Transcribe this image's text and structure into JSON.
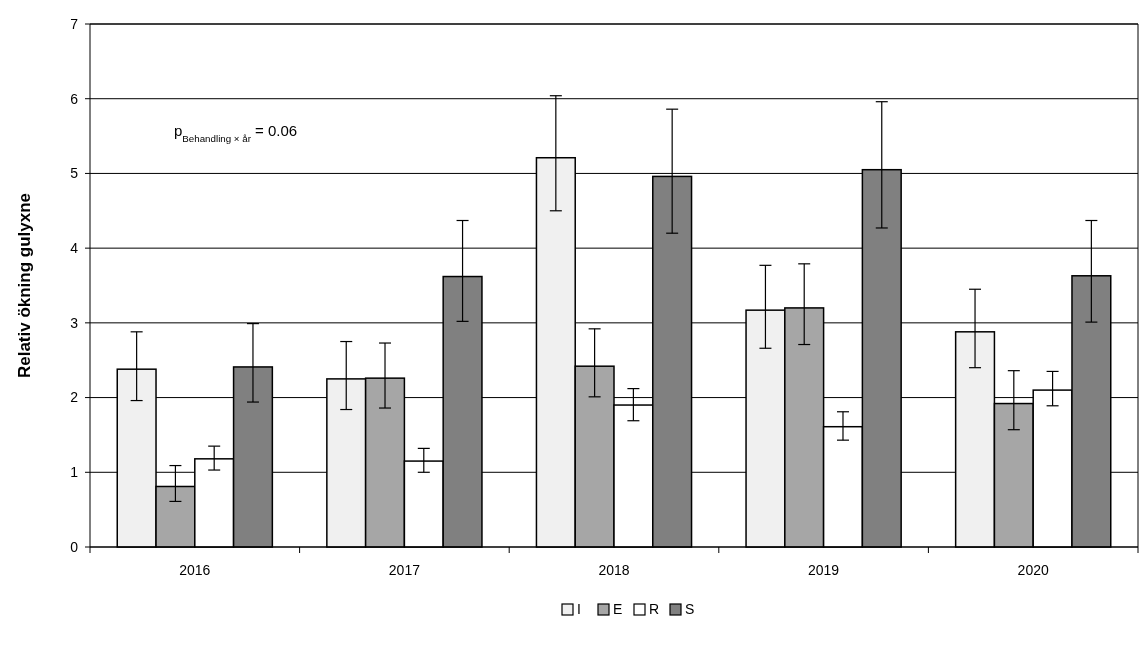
{
  "chart_data": {
    "type": "bar",
    "ylabel": "Relativ ökning gulyxne",
    "categories": [
      "2016",
      "2017",
      "2018",
      "2019",
      "2020"
    ],
    "series": [
      {
        "name": "I",
        "color": "#f0f0f0",
        "values": [
          2.38,
          2.25,
          5.21,
          3.17,
          2.88
        ],
        "errors": [
          [
            1.96,
            2.88
          ],
          [
            1.84,
            2.75
          ],
          [
            4.5,
            6.04
          ],
          [
            2.66,
            3.77
          ],
          [
            2.4,
            3.45
          ]
        ]
      },
      {
        "name": "E",
        "color": "#a6a6a6",
        "values": [
          0.81,
          2.26,
          2.42,
          3.2,
          1.92
        ],
        "errors": [
          [
            0.61,
            1.09
          ],
          [
            1.86,
            2.73
          ],
          [
            2.01,
            2.92
          ],
          [
            2.71,
            3.79
          ],
          [
            1.57,
            2.36
          ]
        ]
      },
      {
        "name": "R",
        "color": "#ffffff",
        "values": [
          1.18,
          1.15,
          1.9,
          1.61,
          2.1
        ],
        "errors": [
          [
            1.03,
            1.35
          ],
          [
            1.0,
            1.32
          ],
          [
            1.69,
            2.12
          ],
          [
            1.43,
            1.81
          ],
          [
            1.89,
            2.35
          ]
        ]
      },
      {
        "name": "S",
        "color": "#808080",
        "values": [
          2.41,
          3.62,
          4.96,
          5.05,
          3.63
        ],
        "errors": [
          [
            1.94,
            2.99
          ],
          [
            3.02,
            4.37
          ],
          [
            4.2,
            5.86
          ],
          [
            4.27,
            5.96
          ],
          [
            3.01,
            4.37
          ]
        ]
      }
    ],
    "ylim": [
      0,
      7
    ],
    "yticks": [
      0,
      1,
      2,
      3,
      4,
      5,
      6,
      7
    ],
    "grid": "y",
    "legend": "bottom",
    "annotations": [
      "p$_{Behandling × år}$ = 0.06"
    ]
  }
}
